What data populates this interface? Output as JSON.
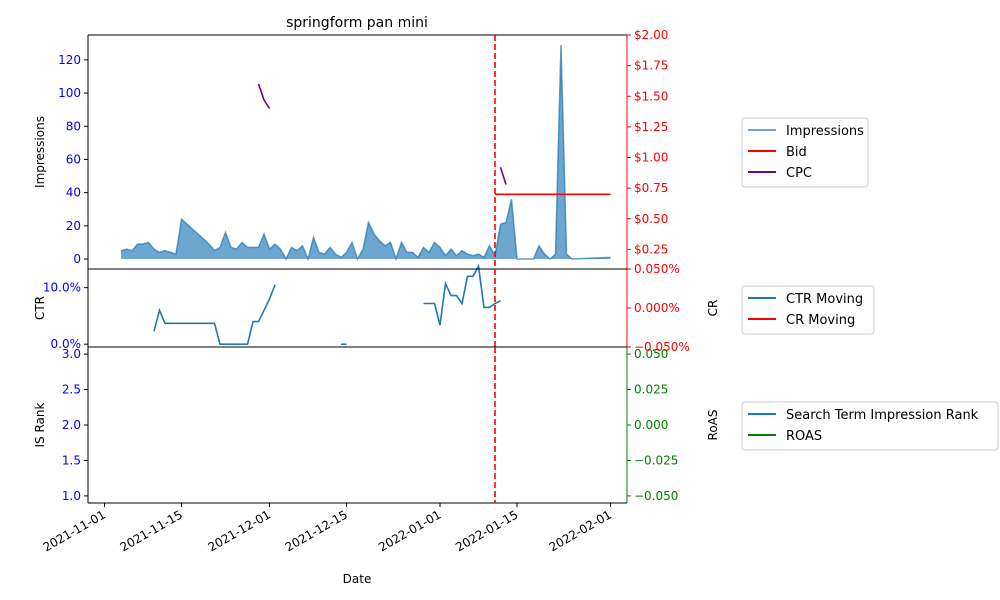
{
  "chart_data": {
    "type": "line",
    "title": "springform pan mini",
    "xlabel": "Date",
    "x_range": [
      "2021-10-29",
      "2022-02-04"
    ],
    "x_ticks": [
      "2021-11-01",
      "2021-11-15",
      "2021-12-01",
      "2021-12-15",
      "2022-01-01",
      "2022-01-15",
      "2022-02-01"
    ],
    "event_line": {
      "date": "2022-01-11",
      "color": "#ff0000",
      "style": "dashed"
    },
    "panels": [
      {
        "name": "impressions-panel",
        "left_axis": {
          "label": "Impressions",
          "range": [
            -6,
            135
          ],
          "ticks": [
            0,
            20,
            40,
            60,
            80,
            100,
            120
          ],
          "tick_labels": [
            "0",
            "20",
            "40",
            "60",
            "80",
            "100",
            "120"
          ],
          "color": "#0000ff"
        },
        "right_axis": {
          "label": "",
          "range": [
            0.09,
            2.0
          ],
          "ticks": [
            0.25,
            0.5,
            0.75,
            1.0,
            1.25,
            1.5,
            1.75,
            2.0
          ],
          "tick_labels": [
            "$0.25",
            "$0.50",
            "$0.75",
            "$1.00",
            "$1.25",
            "$1.50",
            "$1.75",
            "$2.00"
          ],
          "color": "#ff0000"
        },
        "series": [
          {
            "name": "Impressions",
            "kind": "area",
            "axis": "left",
            "color": "#1f77b4",
            "points": [
              [
                "2021-11-04",
                5
              ],
              [
                "2021-11-05",
                6
              ],
              [
                "2021-11-06",
                5
              ],
              [
                "2021-11-07",
                9
              ],
              [
                "2021-11-08",
                9
              ],
              [
                "2021-11-09",
                10
              ],
              [
                "2021-11-10",
                6
              ],
              [
                "2021-11-11",
                4
              ],
              [
                "2021-11-12",
                5
              ],
              [
                "2021-11-13",
                4
              ],
              [
                "2021-11-14",
                3
              ],
              [
                "2021-11-15",
                24
              ],
              [
                "2021-11-16",
                21
              ],
              [
                "2021-11-17",
                18
              ],
              [
                "2021-11-18",
                15
              ],
              [
                "2021-11-19",
                12
              ],
              [
                "2021-11-20",
                9
              ],
              [
                "2021-11-21",
                5
              ],
              [
                "2021-11-22",
                7
              ],
              [
                "2021-11-23",
                16
              ],
              [
                "2021-11-24",
                7
              ],
              [
                "2021-11-25",
                6
              ],
              [
                "2021-11-26",
                10
              ],
              [
                "2021-11-27",
                7
              ],
              [
                "2021-11-28",
                7
              ],
              [
                "2021-11-29",
                7
              ],
              [
                "2021-11-30",
                15
              ],
              [
                "2021-12-01",
                6
              ],
              [
                "2021-12-02",
                9
              ],
              [
                "2021-12-03",
                6
              ],
              [
                "2021-12-04",
                0
              ],
              [
                "2021-12-05",
                7
              ],
              [
                "2021-12-06",
                5
              ],
              [
                "2021-12-07",
                8
              ],
              [
                "2021-12-08",
                0
              ],
              [
                "2021-12-09",
                13
              ],
              [
                "2021-12-10",
                4
              ],
              [
                "2021-12-11",
                3
              ],
              [
                "2021-12-12",
                7
              ],
              [
                "2021-12-13",
                3
              ],
              [
                "2021-12-14",
                1
              ],
              [
                "2021-12-15",
                4
              ],
              [
                "2021-12-16",
                10
              ],
              [
                "2021-12-17",
                0
              ],
              [
                "2021-12-18",
                6
              ],
              [
                "2021-12-19",
                22
              ],
              [
                "2021-12-20",
                15
              ],
              [
                "2021-12-21",
                11
              ],
              [
                "2021-12-22",
                8
              ],
              [
                "2021-12-23",
                10
              ],
              [
                "2021-12-24",
                0
              ],
              [
                "2021-12-25",
                10
              ],
              [
                "2021-12-26",
                4
              ],
              [
                "2021-12-27",
                4
              ],
              [
                "2021-12-28",
                1
              ],
              [
                "2021-12-29",
                7
              ],
              [
                "2021-12-30",
                4
              ],
              [
                "2021-12-31",
                10
              ],
              [
                "2022-01-01",
                7
              ],
              [
                "2022-01-02",
                2
              ],
              [
                "2022-01-03",
                6
              ],
              [
                "2022-01-04",
                2
              ],
              [
                "2022-01-05",
                5
              ],
              [
                "2022-01-06",
                3
              ],
              [
                "2022-01-07",
                2
              ],
              [
                "2022-01-08",
                3
              ],
              [
                "2022-01-09",
                1
              ],
              [
                "2022-01-10",
                8
              ],
              [
                "2022-01-11",
                2
              ],
              [
                "2022-01-12",
                21
              ],
              [
                "2022-01-13",
                22
              ],
              [
                "2022-01-14",
                36
              ],
              [
                "2022-01-15",
                0
              ],
              [
                "2022-01-16",
                0
              ],
              [
                "2022-01-17",
                0
              ],
              [
                "2022-01-18",
                0
              ],
              [
                "2022-01-19",
                8
              ],
              [
                "2022-01-20",
                3
              ],
              [
                "2022-01-21",
                0
              ],
              [
                "2022-01-22",
                3
              ],
              [
                "2022-01-23",
                129
              ],
              [
                "2022-01-24",
                3
              ],
              [
                "2022-01-25",
                0
              ],
              [
                "2022-02-01",
                1
              ]
            ]
          },
          {
            "name": "Bid",
            "kind": "line",
            "axis": "right",
            "color": "#ff0000",
            "points": [
              [
                "2022-01-11",
                0.7
              ],
              [
                "2022-02-01",
                0.7
              ]
            ]
          },
          {
            "name": "CPC",
            "kind": "line",
            "axis": "right",
            "color": "#800080",
            "points": [
              [
                "2021-11-29",
                1.6
              ],
              [
                "2021-11-30",
                1.47
              ],
              [
                "2021-12-01",
                1.4
              ]
            ],
            "points_2": [
              [
                "2022-01-12",
                0.92
              ],
              [
                "2022-01-13",
                0.78
              ]
            ]
          }
        ],
        "legend": [
          "Impressions",
          "Bid",
          "CPC"
        ]
      },
      {
        "name": "ctr-panel",
        "left_axis": {
          "label": "CTR",
          "range": [
            -0.005,
            0.133
          ],
          "ticks": [
            0.0,
            0.1
          ],
          "tick_labels": [
            "0.0%",
            "10.0%"
          ],
          "color": "#0000ff"
        },
        "right_axis": {
          "label": "CR",
          "range": [
            -0.05,
            0.05
          ],
          "ticks": [
            0.05,
            0.0,
            -0.05
          ],
          "tick_labels": [
            "0.050%",
            "0.000%",
            "−0.050%"
          ],
          "color": "#ff0000"
        },
        "series": [
          {
            "name": "CTR Moving",
            "kind": "line",
            "axis": "left",
            "color": "#1f77b4",
            "segments": [
              [
                [
                  "2021-11-10",
                  0.023
                ],
                [
                  "2021-11-11",
                  0.06
                ],
                [
                  "2021-11-12",
                  0.037
                ],
                [
                  "2021-11-21",
                  0.037
                ],
                [
                  "2021-11-22",
                  0.0
                ],
                [
                  "2021-11-27",
                  0.0
                ],
                [
                  "2021-11-28",
                  0.04
                ],
                [
                  "2021-11-29",
                  0.04
                ],
                [
                  "2021-11-30",
                  0.06
                ],
                [
                  "2021-12-01",
                  0.08
                ],
                [
                  "2021-12-02",
                  0.105
                ]
              ],
              [
                [
                  "2021-12-14",
                  0.0
                ],
                [
                  "2021-12-15",
                  0.0
                ]
              ],
              [
                [
                  "2021-12-29",
                  0.072
                ],
                [
                  "2021-12-31",
                  0.072
                ],
                [
                  "2022-01-01",
                  0.034
                ],
                [
                  "2022-01-02",
                  0.107
                ],
                [
                  "2022-01-03",
                  0.086
                ],
                [
                  "2022-01-04",
                  0.086
                ],
                [
                  "2022-01-05",
                  0.072
                ],
                [
                  "2022-01-06",
                  0.12
                ],
                [
                  "2022-01-07",
                  0.12
                ],
                [
                  "2022-01-08",
                  0.138
                ],
                [
                  "2022-01-09",
                  0.065
                ],
                [
                  "2022-01-10",
                  0.065
                ],
                [
                  "2022-01-11",
                  0.072
                ],
                [
                  "2022-01-12",
                  0.077
                ]
              ]
            ]
          },
          {
            "name": "CR Moving",
            "kind": "line",
            "axis": "right",
            "color": "#ff0000",
            "segments": []
          }
        ],
        "legend": [
          "CTR Moving",
          "CR Moving"
        ]
      },
      {
        "name": "rank-panel",
        "left_axis": {
          "label": "IS Rank",
          "range": [
            0.9,
            3.1
          ],
          "ticks": [
            1.0,
            1.5,
            2.0,
            2.5,
            3.0
          ],
          "tick_labels": [
            "1.0",
            "1.5",
            "2.0",
            "2.5",
            "3.0"
          ],
          "color": "#0000ff"
        },
        "right_axis": {
          "label": "RoAS",
          "range": [
            -0.055,
            0.055
          ],
          "ticks": [
            0.05,
            0.025,
            0.0,
            -0.025,
            -0.05
          ],
          "tick_labels": [
            "0.050",
            "0.025",
            "0.000",
            "−0.025",
            "−0.050"
          ],
          "color": "#008000"
        },
        "series": [
          {
            "name": "Search Term Impression Rank",
            "kind": "line",
            "axis": "left",
            "color": "#1f77b4",
            "segments": []
          },
          {
            "name": "ROAS",
            "kind": "line",
            "axis": "right",
            "color": "#008000",
            "segments": []
          }
        ],
        "legend": [
          "Search Term Impression Rank",
          "ROAS"
        ]
      }
    ]
  }
}
